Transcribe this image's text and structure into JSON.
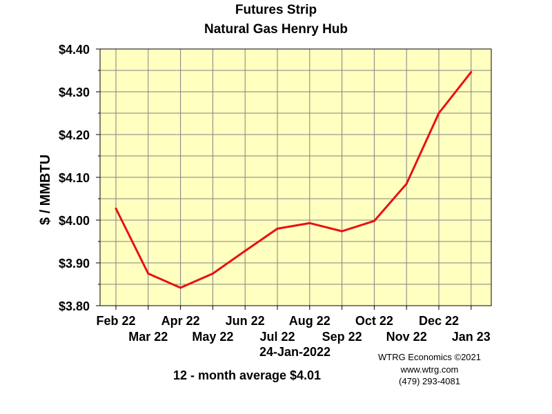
{
  "chart_data": {
    "type": "line",
    "title": "Futures Strip",
    "subtitle": "Natural Gas Henry Hub",
    "ylabel": "$ / MMBTU",
    "ylim": [
      3.8,
      4.4
    ],
    "yticks": [
      "$4.40",
      "$4.30",
      "$4.20",
      "$4.10",
      "$4.00",
      "$3.90",
      "$3.80"
    ],
    "ytick_values": [
      4.4,
      4.3,
      4.2,
      4.1,
      4.0,
      3.9,
      3.8
    ],
    "categories": [
      "Feb 22",
      "Mar 22",
      "Apr 22",
      "May 22",
      "Jun 22",
      "Jul 22",
      "Aug 22",
      "Sep 22",
      "Oct 22",
      "Nov 22",
      "Dec 22",
      "Jan 23"
    ],
    "series": [
      {
        "values": [
          4.027,
          3.875,
          3.842,
          3.875,
          3.928,
          3.98,
          3.993,
          3.974,
          3.998,
          4.085,
          4.25,
          4.346
        ]
      }
    ],
    "line_color": "#e81010",
    "plot_background": "#ffffc0",
    "grid": true
  },
  "footer": {
    "date": "24-Jan-2022",
    "average": "12 - month average $4.01",
    "credit_line1": "WTRG Economics ©2021",
    "credit_line2": "www.wtrg.com",
    "credit_line3": "(479) 293-4081"
  }
}
